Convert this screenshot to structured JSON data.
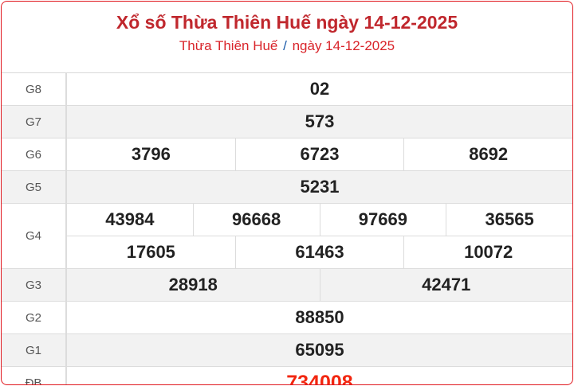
{
  "header": {
    "title": "Xổ số Thừa Thiên Huế ngày 14-12-2025",
    "sub_province": "Thừa Thiên Huế",
    "sub_separator": "/",
    "sub_date": "ngày 14-12-2025"
  },
  "colors": {
    "title": "#c0272d",
    "special": "#f2260f",
    "separator": "#1a5aa8"
  },
  "prizes": [
    {
      "label": "G8",
      "lines": [
        [
          "02"
        ]
      ]
    },
    {
      "label": "G7",
      "lines": [
        [
          "573"
        ]
      ]
    },
    {
      "label": "G6",
      "lines": [
        [
          "3796",
          "6723",
          "8692"
        ]
      ]
    },
    {
      "label": "G5",
      "lines": [
        [
          "5231"
        ]
      ]
    },
    {
      "label": "G4",
      "lines": [
        [
          "43984",
          "96668",
          "97669",
          "36565"
        ],
        [
          "17605",
          "61463",
          "10072"
        ]
      ]
    },
    {
      "label": "G3",
      "lines": [
        [
          "28918",
          "42471"
        ]
      ]
    },
    {
      "label": "G2",
      "lines": [
        [
          "88850"
        ]
      ]
    },
    {
      "label": "G1",
      "lines": [
        [
          "65095"
        ]
      ]
    },
    {
      "label": "ĐB",
      "lines": [
        [
          "734008"
        ]
      ]
    }
  ]
}
